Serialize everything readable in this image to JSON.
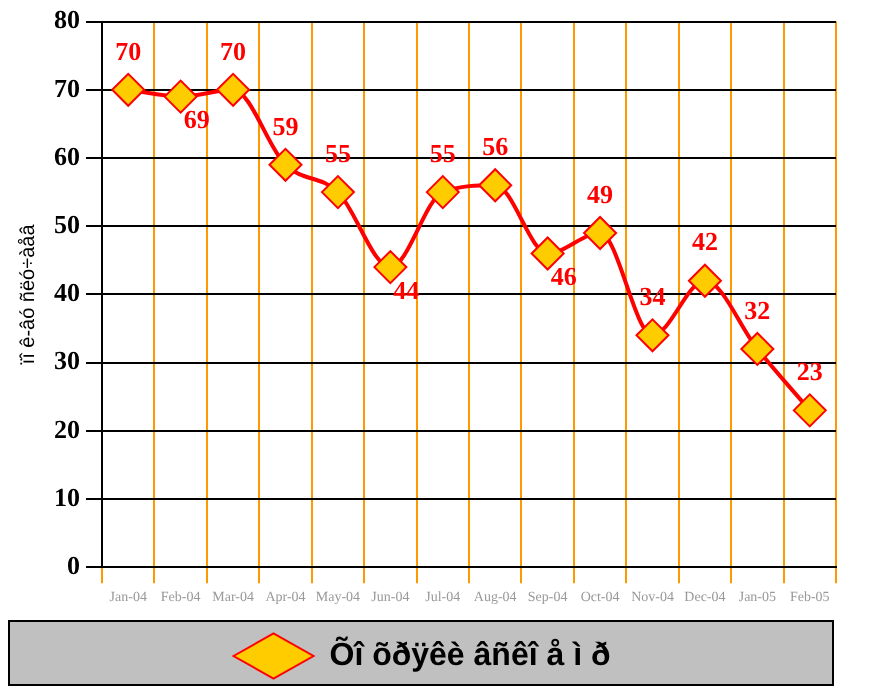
{
  "chart_data": {
    "type": "line",
    "ylabel": "ïî ê-âó ñëó÷àåâ",
    "categories": [
      "Jan-04",
      "Feb-04",
      "Mar-04",
      "Apr-04",
      "May-04",
      "Jun-04",
      "Jul-04",
      "Aug-04",
      "Sep-04",
      "Oct-04",
      "Nov-04",
      "Dec-04",
      "Jan-05",
      "Feb-05"
    ],
    "series": [
      {
        "name": "Õî õðÿêè âñêî å ì ð",
        "color": "#ff0000",
        "values": [
          70,
          69,
          70,
          59,
          55,
          44,
          55,
          56,
          46,
          49,
          34,
          42,
          32,
          23
        ]
      }
    ],
    "ylim": [
      0,
      80
    ],
    "yticks": [
      0,
      10,
      20,
      30,
      40,
      50,
      60,
      70,
      80
    ],
    "grid": true,
    "legend": "bottom",
    "marker": "diamond",
    "line_style": "solid",
    "data_labels": true
  }
}
